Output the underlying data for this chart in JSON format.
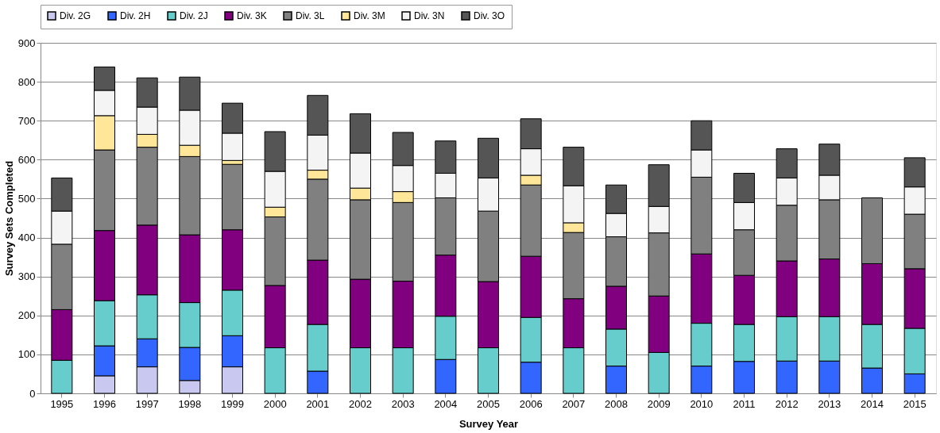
{
  "chart_data": {
    "type": "bar",
    "stacked": true,
    "xlabel": "Survey Year",
    "ylabel": "Survey Sets Completed",
    "categories": [
      "1995",
      "1996",
      "1997",
      "1998",
      "1999",
      "2000",
      "2001",
      "2002",
      "2003",
      "2004",
      "2005",
      "2006",
      "2007",
      "2008",
      "2009",
      "2010",
      "2011",
      "2012",
      "2013",
      "2014",
      "2015"
    ],
    "series": [
      {
        "name": "Div. 2G",
        "color": "#c8c8f0",
        "values": [
          null,
          45,
          68,
          33,
          68,
          null,
          null,
          null,
          null,
          null,
          null,
          null,
          null,
          null,
          null,
          null,
          null,
          null,
          null,
          null,
          null
        ]
      },
      {
        "name": "Div. 2H",
        "color": "#3366ff",
        "values": [
          null,
          77,
          72,
          85,
          80,
          null,
          57,
          null,
          null,
          87,
          null,
          80,
          null,
          70,
          null,
          70,
          82,
          83,
          83,
          65,
          50
        ]
      },
      {
        "name": "Div. 2J",
        "color": "#66cccc",
        "values": [
          85,
          116,
          113,
          115,
          117,
          117,
          120,
          117,
          117,
          111,
          117,
          115,
          117,
          95,
          105,
          110,
          95,
          114,
          114,
          112,
          117
        ]
      },
      {
        "name": "Div. 3K",
        "color": "#800080",
        "values": [
          130,
          180,
          179,
          174,
          155,
          160,
          165,
          176,
          171,
          157,
          170,
          157,
          126,
          110,
          145,
          178,
          126,
          143,
          148,
          156,
          153
        ]
      },
      {
        "name": "Div. 3L",
        "color": "#808080",
        "values": [
          168,
          207,
          200,
          201,
          168,
          176,
          208,
          204,
          202,
          147,
          181,
          183,
          170,
          127,
          162,
          197,
          117,
          143,
          152,
          169,
          140
        ]
      },
      {
        "name": "Div. 3M",
        "color": "#ffe699",
        "values": [
          null,
          88,
          33,
          29,
          10,
          25,
          23,
          30,
          28,
          null,
          null,
          25,
          25,
          null,
          null,
          null,
          null,
          null,
          null,
          null,
          null
        ]
      },
      {
        "name": "Div. 3N",
        "color": "#f4f4f4",
        "values": [
          85,
          65,
          70,
          90,
          70,
          92,
          90,
          90,
          67,
          63,
          85,
          68,
          95,
          60,
          68,
          70,
          70,
          70,
          63,
          null,
          70
        ]
      },
      {
        "name": "Div. 3O",
        "color": "#555555",
        "values": [
          85,
          60,
          75,
          85,
          77,
          102,
          102,
          101,
          85,
          83,
          102,
          77,
          99,
          73,
          107,
          75,
          75,
          75,
          80,
          null,
          75
        ]
      }
    ],
    "ylim": [
      0,
      900
    ],
    "yticks": [
      0,
      100,
      200,
      300,
      400,
      500,
      600,
      700,
      800,
      900
    ],
    "grid": "y",
    "legend": "top"
  }
}
